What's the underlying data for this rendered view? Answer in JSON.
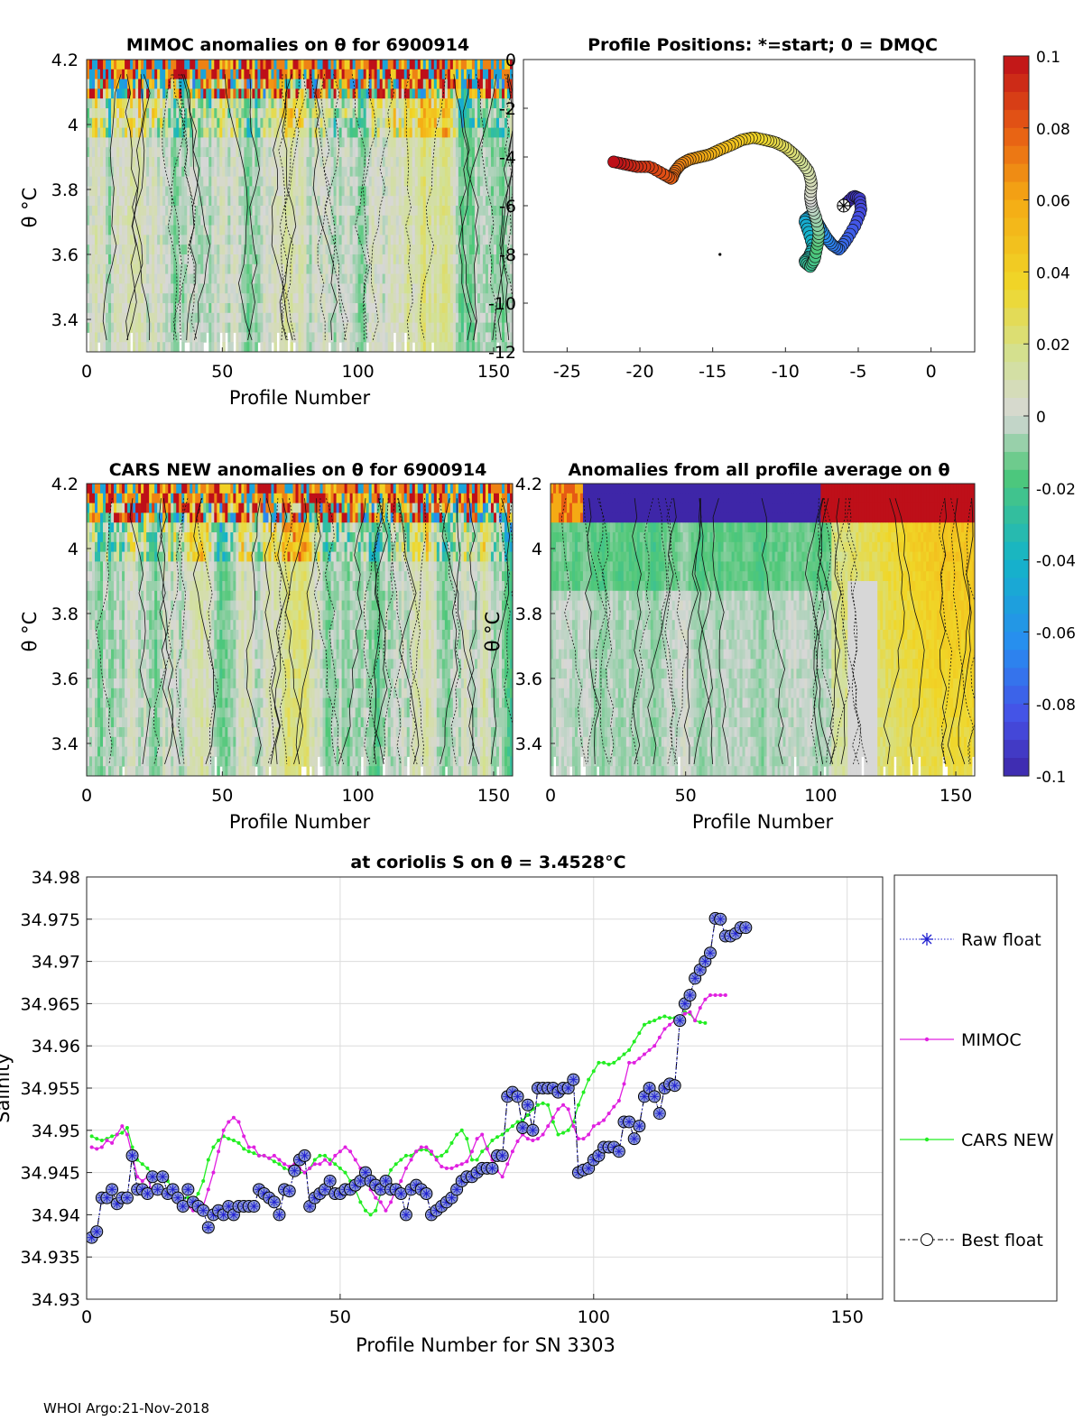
{
  "footer": "WHOI Argo:21-Nov-2018",
  "colors": {
    "raw_float": "#1f1fd0",
    "mimoc": "#e020e0",
    "cars": "#22ee22",
    "best_float": "#000000",
    "marker_face": "#8a97d8"
  },
  "colorbar": {
    "ticks": [
      "0.1",
      "0.08",
      "0.06",
      "0.04",
      "0.02",
      "0",
      "-0.02",
      "-0.04",
      "-0.06",
      "-0.08",
      "-0.1"
    ],
    "range": [
      -0.1,
      0.1
    ]
  },
  "chart_data": [
    {
      "id": "mimoc",
      "type": "heatmap",
      "title": "MIMOC anomalies on θ  for 6900914",
      "xlabel": "Profile Number",
      "ylabel": "θ °C",
      "xlim": [
        0,
        157
      ],
      "ylim": [
        3.3,
        4.2
      ],
      "xticks": [
        "0",
        "50",
        "100",
        "150"
      ],
      "yticks": [
        "3.4",
        "3.6",
        "3.8",
        "4",
        "4.2"
      ],
      "seed": 7
    },
    {
      "id": "positions",
      "type": "scatter",
      "title": "Profile Positions: *=start; 0 = DMQC",
      "xlim": [
        -28,
        3
      ],
      "ylim": [
        -12,
        0
      ],
      "xticks": [
        "-25",
        "-20",
        "-15",
        "-10",
        "-5",
        "0"
      ],
      "yticks": [
        "0",
        "-2",
        "-4",
        "-6",
        "-8",
        "-10",
        "-12"
      ],
      "start": [
        -6.0,
        -6.0
      ],
      "path": [
        [
          -6.0,
          -6.0
        ],
        [
          -5.3,
          -5.6
        ],
        [
          -4.9,
          -5.7
        ],
        [
          -4.8,
          -6.2
        ],
        [
          -5.2,
          -6.8
        ],
        [
          -5.8,
          -7.4
        ],
        [
          -6.3,
          -7.8
        ],
        [
          -6.8,
          -7.6
        ],
        [
          -7.2,
          -7.3
        ],
        [
          -7.6,
          -6.9
        ],
        [
          -7.9,
          -6.6
        ],
        [
          -8.3,
          -6.4
        ],
        [
          -8.7,
          -6.6
        ],
        [
          -8.4,
          -7.1
        ],
        [
          -8.1,
          -7.7
        ],
        [
          -8.4,
          -8.1
        ],
        [
          -8.7,
          -8.3
        ],
        [
          -8.3,
          -8.5
        ],
        [
          -8.0,
          -8.2
        ],
        [
          -7.8,
          -7.6
        ],
        [
          -7.7,
          -7.1
        ],
        [
          -7.9,
          -6.5
        ],
        [
          -8.2,
          -6.0
        ],
        [
          -8.3,
          -5.6
        ],
        [
          -8.2,
          -5.1
        ],
        [
          -8.4,
          -4.6
        ],
        [
          -8.9,
          -4.2
        ],
        [
          -9.4,
          -3.9
        ],
        [
          -10.0,
          -3.6
        ],
        [
          -10.7,
          -3.4
        ],
        [
          -11.4,
          -3.3
        ],
        [
          -12.2,
          -3.2
        ],
        [
          -13.0,
          -3.3
        ],
        [
          -13.7,
          -3.5
        ],
        [
          -14.5,
          -3.7
        ],
        [
          -15.2,
          -3.9
        ],
        [
          -15.9,
          -4.0
        ],
        [
          -16.6,
          -4.1
        ],
        [
          -17.2,
          -4.3
        ],
        [
          -17.6,
          -4.6
        ],
        [
          -17.8,
          -4.9
        ],
        [
          -18.4,
          -4.7
        ],
        [
          -19.3,
          -4.4
        ],
        [
          -20.2,
          -4.4
        ],
        [
          -21.0,
          -4.3
        ],
        [
          -21.8,
          -4.2
        ]
      ]
    },
    {
      "id": "cars",
      "type": "heatmap",
      "title": "CARS NEW anomalies on θ for 6900914",
      "xlabel": "Profile Number",
      "ylabel": "θ °C",
      "xlim": [
        0,
        157
      ],
      "ylim": [
        3.3,
        4.2
      ],
      "xticks": [
        "0",
        "50",
        "100",
        "150"
      ],
      "yticks": [
        "3.4",
        "3.6",
        "3.8",
        "4",
        "4.2"
      ],
      "seed": 13
    },
    {
      "id": "allprof",
      "type": "heatmap",
      "title": "Anomalies from all profile average on θ",
      "xlabel": "Profile Number",
      "ylabel": "θ °C",
      "xlim": [
        0,
        157
      ],
      "ylim": [
        3.3,
        4.2
      ],
      "xticks": [
        "0",
        "50",
        "100",
        "150"
      ],
      "yticks": [
        "3.4",
        "3.6",
        "3.8",
        "4",
        "4.2"
      ],
      "seed": 29
    },
    {
      "id": "salinity",
      "type": "line",
      "title": "at coriolis S on θ = 3.4528°C",
      "xlabel": "Profile Number for SN 3303",
      "ylabel": "Salinity",
      "xlim": [
        0,
        157
      ],
      "ylim": [
        34.93,
        34.98
      ],
      "xticks": [
        "0",
        "50",
        "100",
        "150"
      ],
      "yticks": [
        "34.98",
        "34.975",
        "34.97",
        "34.965",
        "34.96",
        "34.955",
        "34.95",
        "34.945",
        "34.94",
        "34.935",
        "34.93"
      ],
      "grid": true,
      "legend": [
        "Raw float",
        "MIMOC",
        "CARS NEW",
        "Best float"
      ],
      "legend_position": "outside-right",
      "series": [
        {
          "name": "Raw float / Best float",
          "x_start": 1,
          "x_step": 1,
          "values": [
            34.9373,
            34.938,
            34.942,
            34.942,
            34.943,
            34.9413,
            34.942,
            34.942,
            34.947,
            34.943,
            34.943,
            34.9425,
            34.9445,
            34.943,
            34.9445,
            34.9425,
            34.943,
            34.942,
            34.941,
            34.943,
            34.9415,
            34.941,
            34.9405,
            34.9385,
            34.94,
            34.9405,
            34.94,
            34.941,
            34.94,
            34.941,
            34.941,
            34.941,
            34.941,
            34.943,
            34.9425,
            34.942,
            34.9415,
            34.94,
            34.943,
            34.9428,
            34.9452,
            34.9465,
            34.947,
            34.941,
            34.942,
            34.9425,
            34.943,
            34.944,
            34.9425,
            34.9425,
            34.943,
            34.943,
            34.9435,
            34.944,
            34.945,
            34.944,
            34.9435,
            34.943,
            34.944,
            34.943,
            34.943,
            34.9425,
            34.94,
            34.943,
            34.9435,
            34.943,
            34.9425,
            34.94,
            34.9405,
            34.941,
            34.9415,
            34.942,
            34.943,
            34.944,
            34.9445,
            34.9445,
            34.945,
            34.9455,
            34.9455,
            34.9455,
            34.947,
            34.947,
            34.954,
            34.9545,
            34.954,
            34.9503,
            34.953,
            34.95,
            34.955,
            34.955,
            34.955,
            34.955,
            34.9545,
            34.955,
            34.955,
            34.956,
            34.945,
            34.9453,
            34.9455,
            34.9465,
            34.947,
            34.948,
            34.948,
            34.948,
            34.9475,
            34.951,
            34.951,
            34.949,
            34.9505,
            34.954,
            34.955,
            34.954,
            34.952,
            34.955,
            34.9555,
            34.9553,
            34.963,
            34.965,
            34.966,
            34.968,
            34.969,
            34.97,
            34.971,
            34.9751,
            34.975,
            34.973,
            34.973,
            34.9733,
            34.974,
            34.974
          ]
        }
      ],
      "mimoc": [
        34.948,
        34.9478,
        34.948,
        34.9488,
        34.9485,
        34.9495,
        34.9505,
        34.9495,
        34.947,
        34.9445,
        34.944,
        34.9445,
        34.9425,
        34.9425,
        34.9425,
        34.942,
        34.942,
        34.9415,
        34.941,
        34.941,
        34.9405,
        34.9405,
        34.941,
        34.943,
        34.945,
        34.9475,
        34.95,
        34.951,
        34.9515,
        34.951,
        34.9493,
        34.948,
        34.948,
        34.947,
        34.947,
        34.9467,
        34.947,
        34.9465,
        34.946,
        34.9457,
        34.946,
        34.9455,
        34.945,
        34.9455,
        34.946,
        34.946,
        34.9465,
        34.946,
        34.947,
        34.9475,
        34.948,
        34.9475,
        34.9465,
        34.9455,
        34.9445,
        34.943,
        34.942,
        34.9415,
        34.9405,
        34.9415,
        34.943,
        34.944,
        34.9455,
        34.9465,
        34.9475,
        34.948,
        34.948,
        34.9475,
        34.9465,
        34.9457,
        34.9455,
        34.9455,
        34.9458,
        34.946,
        34.9463,
        34.9475,
        34.949,
        34.9495,
        34.9478,
        34.9465,
        34.9452,
        34.9445,
        34.946,
        34.9475,
        34.9487,
        34.9495,
        34.949,
        34.9488,
        34.949,
        34.9495,
        34.9505,
        34.9515,
        34.9525,
        34.953,
        34.9525,
        34.9505,
        34.949,
        34.949,
        34.9495,
        34.9505,
        34.9508,
        34.9512,
        34.952,
        34.9528,
        34.9535,
        34.9555,
        34.958,
        34.958,
        34.9585,
        34.959,
        34.9595,
        34.96,
        34.961,
        34.962,
        34.9625,
        34.963,
        34.9635,
        34.9638,
        34.964,
        34.963,
        34.9645,
        34.9655,
        34.966,
        34.966,
        34.966,
        34.966
      ],
      "cars": [
        34.9493,
        34.949,
        34.9488,
        34.949,
        34.9493,
        34.9495,
        34.9497,
        34.9503,
        34.948,
        34.9465,
        34.946,
        34.9455,
        34.9448,
        34.9445,
        34.9445,
        34.944,
        34.943,
        34.9425,
        34.942,
        34.942,
        34.9415,
        34.9425,
        34.944,
        34.9465,
        34.948,
        34.9488,
        34.9493,
        34.949,
        34.9488,
        34.9485,
        34.9478,
        34.9475,
        34.9473,
        34.947,
        34.947,
        34.9467,
        34.9463,
        34.946,
        34.9455,
        34.9453,
        34.945,
        34.945,
        34.945,
        34.9455,
        34.9465,
        34.947,
        34.947,
        34.9465,
        34.946,
        34.9455,
        34.945,
        34.944,
        34.943,
        34.9415,
        34.9405,
        34.94,
        34.9405,
        34.9425,
        34.944,
        34.9453,
        34.946,
        34.9465,
        34.947,
        34.947,
        34.9475,
        34.9477,
        34.9477,
        34.9472,
        34.9468,
        34.947,
        34.9475,
        34.9485,
        34.9495,
        34.95,
        34.949,
        34.9465,
        34.9465,
        34.9475,
        34.948,
        34.9488,
        34.9492,
        34.9495,
        34.95,
        34.9505,
        34.951,
        34.9512,
        34.9518,
        34.9525,
        34.953,
        34.9532,
        34.953,
        34.951,
        34.9495,
        34.9497,
        34.95,
        34.951,
        34.953,
        34.9545,
        34.956,
        34.957,
        34.958,
        34.958,
        34.9578,
        34.958,
        34.9585,
        34.959,
        34.9595,
        34.9605,
        34.9615,
        34.9625,
        34.9628,
        34.963,
        34.9633,
        34.9635,
        34.9633,
        34.9633,
        34.9633,
        34.964,
        34.9638,
        34.963,
        34.9628,
        34.9627
      ]
    }
  ]
}
